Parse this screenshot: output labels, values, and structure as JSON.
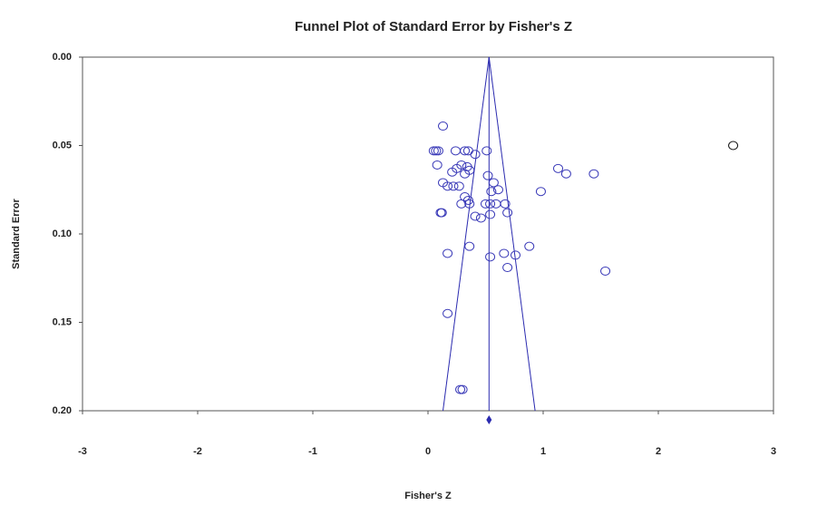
{
  "chart_data": {
    "type": "scatter",
    "title": "Funnel Plot of Standard Error by Fisher's Z",
    "x_label": "Fisher's Z",
    "y_label": "Standard Error",
    "xlim": [
      -3,
      3
    ],
    "xticks": [
      -3,
      -2,
      -1,
      0,
      1,
      2,
      3
    ],
    "ylim": [
      0,
      0.2
    ],
    "y_inverted": true,
    "yticks": [
      {
        "value": 0,
        "label": "0.00"
      },
      {
        "value": 0.05,
        "label": "0.05"
      },
      {
        "value": 0.1,
        "label": "0.10"
      },
      {
        "value": 0.15,
        "label": "0.15"
      },
      {
        "value": 0.2,
        "label": "0.20"
      }
    ],
    "funnel": {
      "center": 0.53,
      "lower": 0.13,
      "upper": 0.93,
      "color": "#2b2bb0"
    },
    "series": [
      {
        "color": "#3a3ab8",
        "x": [
          0.13,
          0.07,
          0.05,
          0.09,
          0.24,
          0.32,
          0.35,
          0.51,
          0.41,
          0.08,
          0.29,
          0.34,
          0.21,
          0.25,
          0.32,
          0.36,
          1.13,
          1.2,
          1.44,
          0.52,
          0.57,
          0.61,
          0.13,
          0.17,
          0.22,
          0.27,
          0.55,
          0.98,
          0.32,
          0.35,
          0.36,
          0.29,
          0.5,
          0.54,
          0.59,
          0.67,
          0.11,
          0.12,
          0.41,
          0.46,
          0.54,
          0.69,
          0.36,
          0.88,
          0.17,
          0.54,
          0.66,
          0.76,
          0.69,
          1.54,
          0.17,
          0.28,
          0.3
        ],
        "y": [
          0.039,
          0.053,
          0.053,
          0.053,
          0.053,
          0.053,
          0.053,
          0.053,
          0.055,
          0.061,
          0.061,
          0.062,
          0.065,
          0.063,
          0.066,
          0.064,
          0.063,
          0.066,
          0.066,
          0.067,
          0.071,
          0.075,
          0.071,
          0.073,
          0.073,
          0.073,
          0.076,
          0.076,
          0.079,
          0.081,
          0.083,
          0.083,
          0.083,
          0.083,
          0.083,
          0.083,
          0.088,
          0.088,
          0.09,
          0.091,
          0.089,
          0.088,
          0.107,
          0.107,
          0.111,
          0.113,
          0.111,
          0.112,
          0.119,
          0.121,
          0.145,
          0.188,
          0.188
        ]
      },
      {
        "color": "#111111",
        "x": [
          2.65
        ],
        "y": [
          0.05
        ]
      }
    ]
  }
}
